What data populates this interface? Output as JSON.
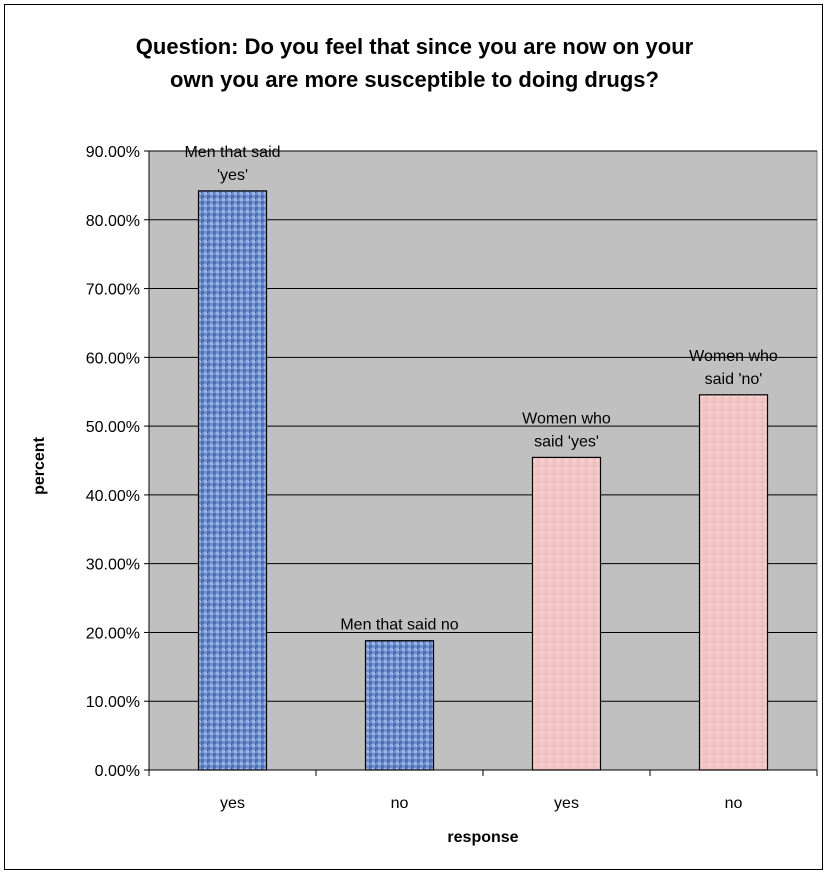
{
  "chart_data": {
    "type": "bar",
    "title_lines": [
      "Question: Do you feel that since you are now on your",
      "own you are more susceptible to doing drugs?"
    ],
    "xlabel": "response",
    "ylabel": "percent",
    "categories": [
      "yes",
      "no",
      "yes",
      "no"
    ],
    "values": [
      84.2,
      18.8,
      45.45,
      54.55
    ],
    "bar_labels": [
      [
        "Men that said",
        "'yes'"
      ],
      [
        "Men that said no"
      ],
      [
        "Women who",
        "said 'yes'"
      ],
      [
        "Women who",
        "said 'no'"
      ]
    ],
    "bar_colors": [
      "#6f8fcf",
      "#6f8fcf",
      "#f3c6c6",
      "#f3c6c6"
    ],
    "ylim": [
      0,
      90
    ],
    "ytick_step": 10,
    "ytick_decimals": 2,
    "ytick_suffix": "%",
    "plot_background": "#c0c0c0",
    "grid": true,
    "legend": "none"
  }
}
